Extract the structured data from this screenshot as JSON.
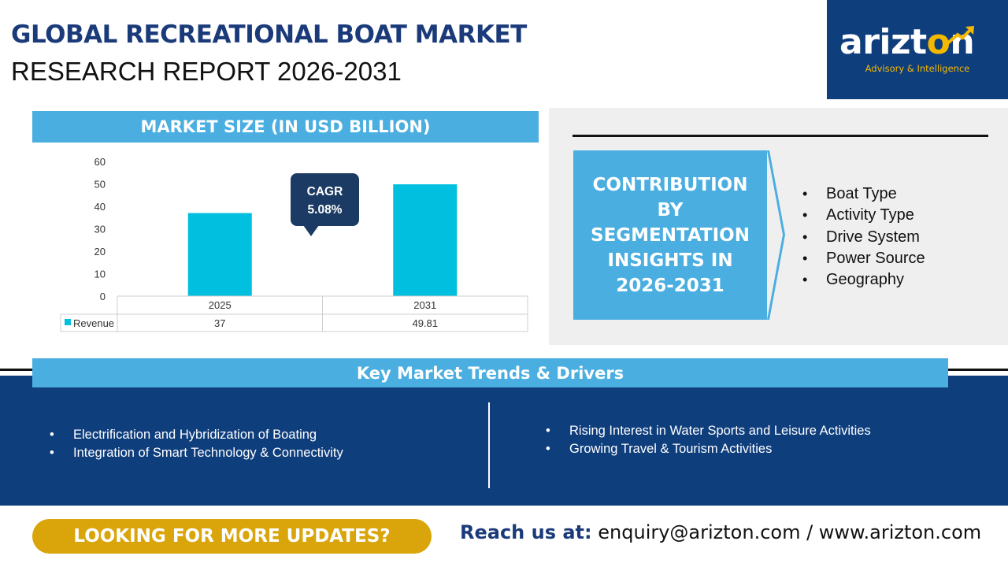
{
  "header": {
    "title_line1": "GLOBAL RECREATIONAL BOAT MARKET",
    "title_line2": "RESEARCH REPORT 2026-2031"
  },
  "logo": {
    "wordmark_start": "arizt",
    "wordmark_o": "o",
    "wordmark_end": "n",
    "tagline": "Advisory & Intelligence",
    "icon": "arrow-up-right-icon"
  },
  "chart_section": {
    "header": "MARKET SIZE (IN USD BILLION)",
    "cagr_label": "CAGR",
    "cagr_value": "5.08%"
  },
  "chart_data": {
    "type": "bar",
    "categories": [
      "2025",
      "2031"
    ],
    "series": [
      {
        "name": "Revenue",
        "values": [
          37,
          49.81
        ],
        "value_labels": [
          "37",
          "49.81"
        ],
        "color": "#00bfdf"
      }
    ],
    "ylim": [
      0,
      60
    ],
    "yticks": [
      0,
      10,
      20,
      30,
      40,
      50,
      60
    ],
    "data_table": true,
    "grid": false
  },
  "segmentation": {
    "heading": "CONTRIBUTION BY SEGMENTATION INSIGHTS IN 2026-2031",
    "items": [
      "Boat Type",
      "Activity Type",
      "Drive System",
      "Power Source",
      "Geography"
    ]
  },
  "trends": {
    "header": "Key Market Trends & Drivers",
    "left": [
      "Electrification and Hybridization of Boating",
      "Integration of Smart Technology & Connectivity"
    ],
    "right": [
      "Rising Interest in Water Sports and Leisure Activities",
      "Growing Travel & Tourism Activities"
    ]
  },
  "footer": {
    "cta": "LOOKING FOR MORE UPDATES?",
    "reach_label": "Reach us at:",
    "contact": "enquiry@arizton.com / www.arizton.com"
  },
  "colors": {
    "navy": "#0f3e7d",
    "light_blue": "#4aaee0",
    "bar": "#00bfdf",
    "gold": "#d9a50a",
    "logo_accent": "#f5b800",
    "bubble": "#1b3b64"
  }
}
